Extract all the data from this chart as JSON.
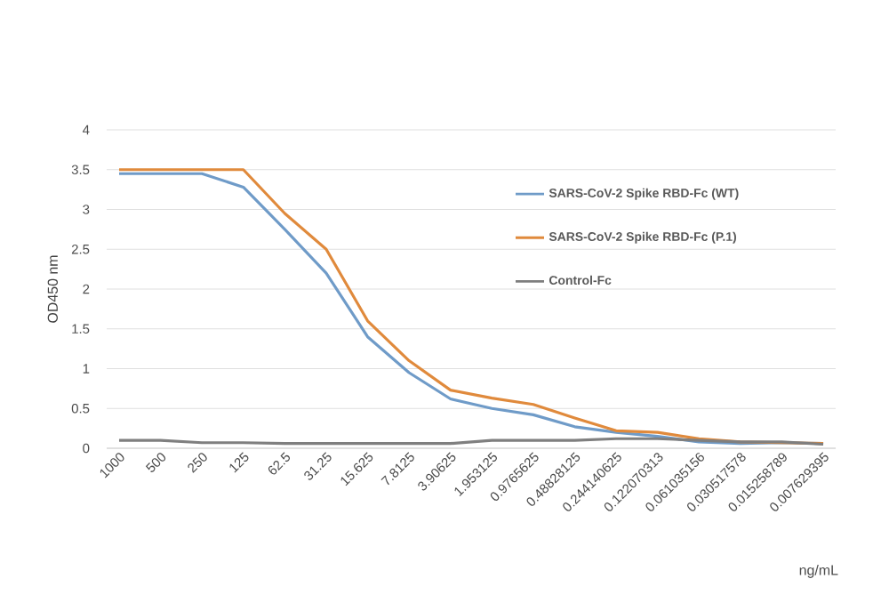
{
  "chart_data": {
    "type": "line",
    "xlabel": "ng/mL",
    "ylabel": "OD450 nm",
    "categories": [
      "1000",
      "500",
      "250",
      "125",
      "62.5",
      "31.25",
      "15.625",
      "7.8125",
      "3.90625",
      "1.953125",
      "0.9765625",
      "0.48828125",
      "0.244140625",
      "0.122070313",
      "0.061035156",
      "0.030517578",
      "0.015258789",
      "0.007629395"
    ],
    "series": [
      {
        "name": "SARS-CoV-2 Spike RBD-Fc (WT)",
        "color": "#6f9bc8",
        "values": [
          3.45,
          3.45,
          3.45,
          3.28,
          2.75,
          2.2,
          1.4,
          0.95,
          0.62,
          0.5,
          0.42,
          0.27,
          0.2,
          0.15,
          0.08,
          0.06,
          0.07,
          0.06
        ]
      },
      {
        "name": "SARS-CoV-2 Spike RBD-Fc (P.1)",
        "color": "#e08a3c",
        "values": [
          3.5,
          3.5,
          3.5,
          3.5,
          2.95,
          2.5,
          1.6,
          1.1,
          0.73,
          0.63,
          0.55,
          0.38,
          0.22,
          0.2,
          0.12,
          0.08,
          0.07,
          0.06
        ]
      },
      {
        "name": "Control-Fc",
        "color": "#7f7f7f",
        "values": [
          0.1,
          0.1,
          0.07,
          0.07,
          0.06,
          0.06,
          0.06,
          0.06,
          0.06,
          0.1,
          0.1,
          0.1,
          0.12,
          0.12,
          0.1,
          0.08,
          0.08,
          0.05
        ]
      }
    ],
    "ylim": [
      0,
      4
    ],
    "yticks": [
      0,
      0.5,
      1,
      1.5,
      2,
      2.5,
      3,
      3.5,
      4
    ],
    "grid": "y",
    "legend": "top right",
    "marker": "none",
    "line_style": "solid"
  }
}
